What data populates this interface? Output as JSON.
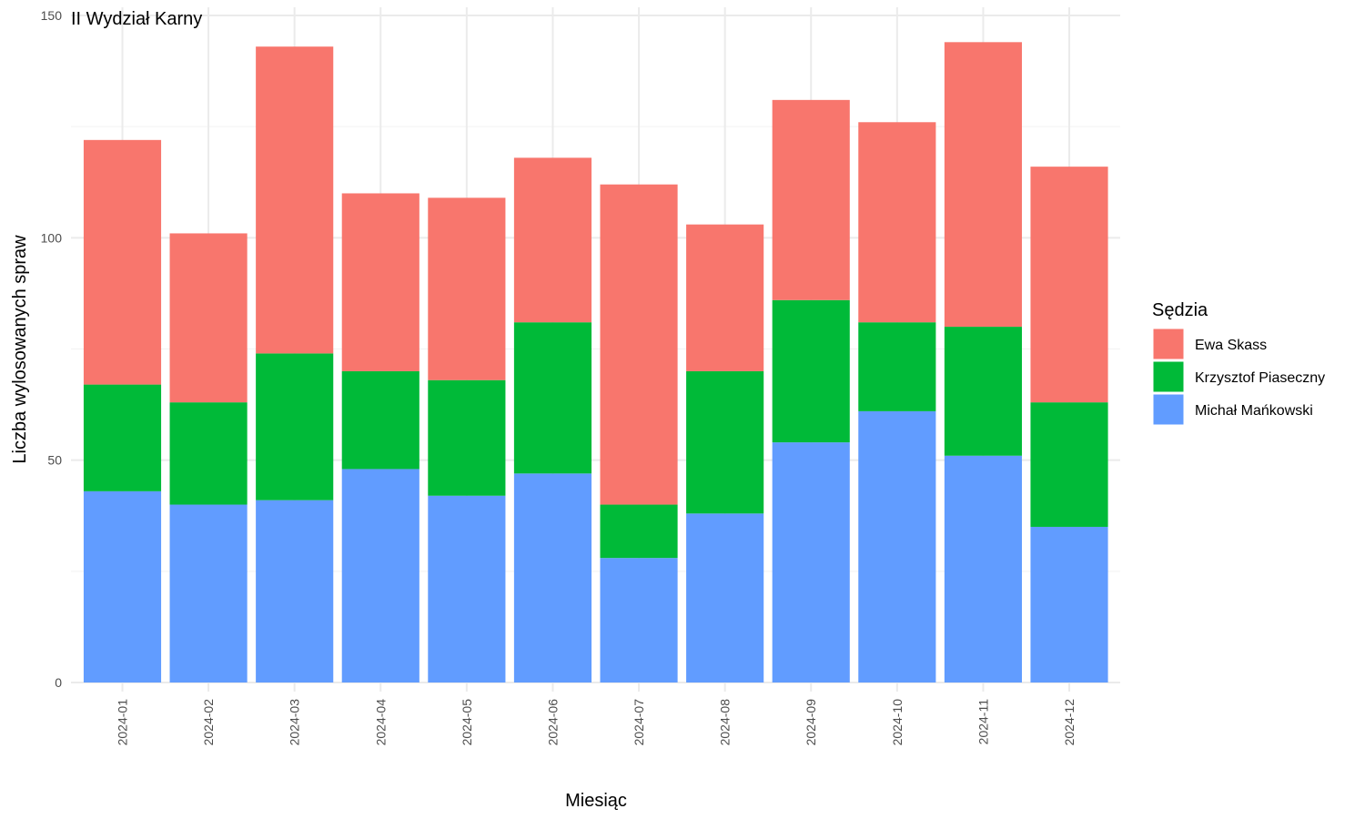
{
  "chart_data": {
    "type": "bar",
    "stacked": true,
    "title": "II Wydział Karny",
    "xlabel": "Miesiąc",
    "ylabel": "Liczba wylosowanych spraw",
    "ylim": [
      0,
      150
    ],
    "yticks": [
      0,
      50,
      100,
      150
    ],
    "grid": true,
    "legend": {
      "title": "Sędzia",
      "position": "right"
    },
    "categories": [
      "2024-01",
      "2024-02",
      "2024-03",
      "2024-04",
      "2024-05",
      "2024-06",
      "2024-07",
      "2024-08",
      "2024-09",
      "2024-10",
      "2024-11",
      "2024-12"
    ],
    "series": [
      {
        "name": "Michał Mańkowski",
        "color": "#619CFF",
        "values": [
          43,
          40,
          41,
          48,
          42,
          47,
          28,
          38,
          54,
          61,
          51,
          35
        ]
      },
      {
        "name": "Krzysztof Piaseczny",
        "color": "#00BA38",
        "values": [
          24,
          23,
          33,
          22,
          26,
          34,
          12,
          32,
          32,
          20,
          29,
          28
        ]
      },
      {
        "name": "Ewa Skass",
        "color": "#F8766D",
        "values": [
          55,
          38,
          69,
          40,
          41,
          37,
          72,
          33,
          45,
          45,
          64,
          53
        ]
      }
    ],
    "legend_order": [
      "Ewa Skass",
      "Krzysztof Piaseczny",
      "Michał Mańkowski"
    ]
  }
}
